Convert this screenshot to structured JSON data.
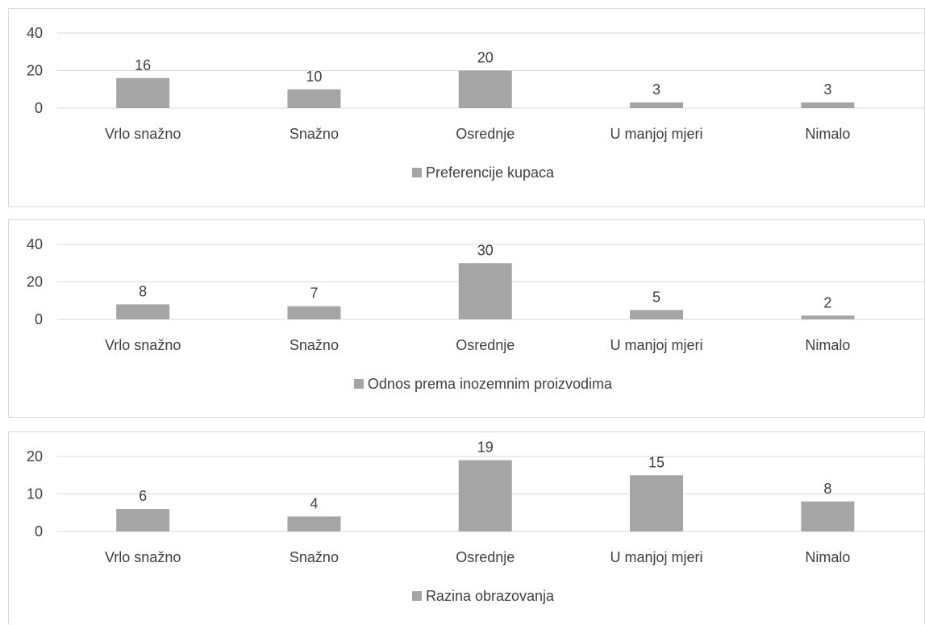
{
  "colors": {
    "bar": "#a5a5a5",
    "grid": "#d9d9d9",
    "text": "#404040",
    "border": "#d9d9d9"
  },
  "chart_data": [
    {
      "type": "bar",
      "categories": [
        "Vrlo snažno",
        "Snažno",
        "Osrednje",
        "U manjoj mjeri",
        "Nimalo"
      ],
      "series": [
        {
          "name": "Preferencije kupaca",
          "values": [
            16,
            10,
            20,
            3,
            3
          ]
        }
      ],
      "ylim": [
        0,
        40
      ],
      "yticks": [
        0,
        20,
        40
      ],
      "grid": true,
      "legend": "bottom"
    },
    {
      "type": "bar",
      "categories": [
        "Vrlo snažno",
        "Snažno",
        "Osrednje",
        "U manjoj mjeri",
        "Nimalo"
      ],
      "series": [
        {
          "name": "Odnos prema inozemnim proizvodima",
          "values": [
            8,
            7,
            30,
            5,
            2
          ]
        }
      ],
      "ylim": [
        0,
        40
      ],
      "yticks": [
        0,
        20,
        40
      ],
      "grid": true,
      "legend": "bottom"
    },
    {
      "type": "bar",
      "categories": [
        "Vrlo snažno",
        "Snažno",
        "Osrednje",
        "U manjoj mjeri",
        "Nimalo"
      ],
      "series": [
        {
          "name": "Razina obrazovanja",
          "values": [
            6,
            4,
            19,
            15,
            8
          ]
        }
      ],
      "ylim": [
        0,
        20
      ],
      "yticks": [
        0,
        10,
        20
      ],
      "grid": true,
      "legend": "bottom"
    }
  ]
}
